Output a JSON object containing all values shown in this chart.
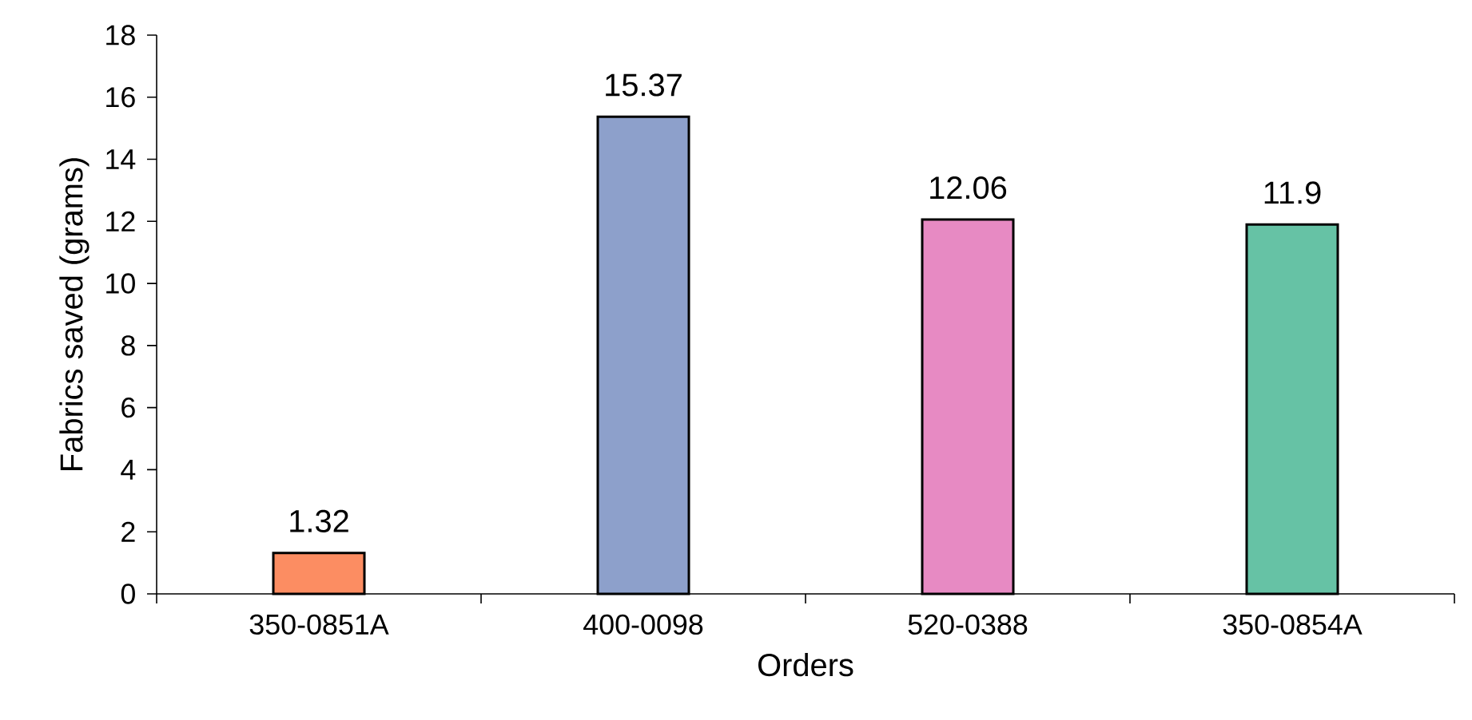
{
  "chart_data": {
    "type": "bar",
    "xlabel": "Orders",
    "ylabel": "Fabrics  saved (grams)",
    "categories": [
      "350-0851A",
      "400-0098",
      "520-0388",
      "350-0854A"
    ],
    "values": [
      1.32,
      15.37,
      12.06,
      11.9
    ],
    "colors": [
      "#fc8d62",
      "#8da0cb",
      "#e78ac3",
      "#66c2a5"
    ],
    "ylim": [
      0,
      18
    ],
    "yticks": [
      0,
      2,
      4,
      6,
      8,
      10,
      12,
      14,
      16,
      18
    ],
    "data_labels": true
  }
}
